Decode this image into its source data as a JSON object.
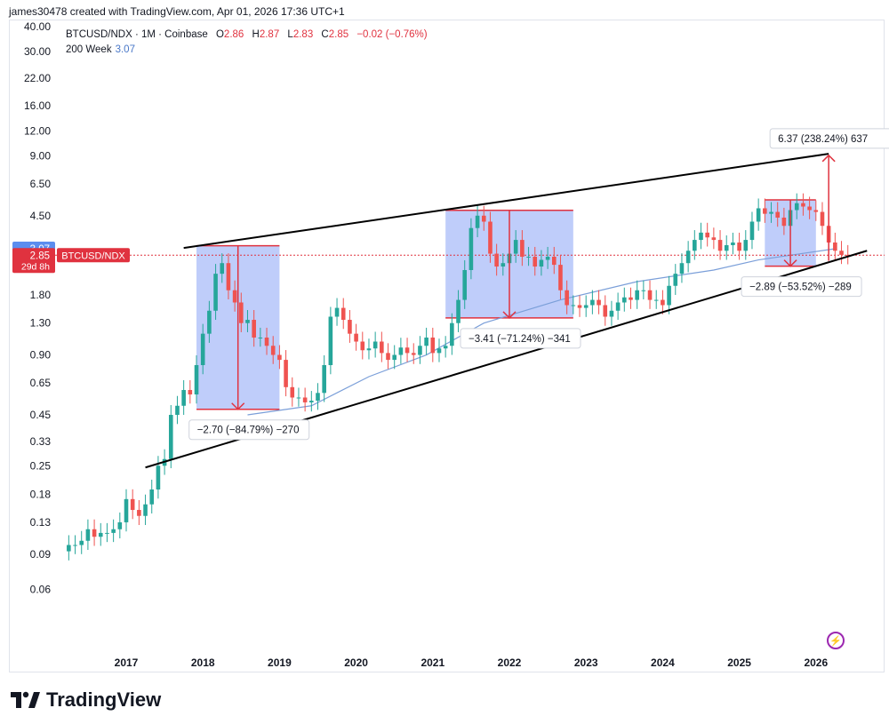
{
  "header": {
    "created_by": "james30478 created with TradingView.com, Apr 01, 2026 17:36 UTC+1"
  },
  "legend": {
    "symbol": "BTCUSD/NDX · 1M · Coinbase",
    "o_label": "O",
    "o_value": "2.86",
    "h_label": "H",
    "h_value": "2.87",
    "l_label": "L",
    "l_value": "2.83",
    "c_label": "C",
    "c_value": "2.85",
    "change": "−0.02 (−0.76%)",
    "ma_label": "200 Week",
    "ma_value": "3.07"
  },
  "price_badges": {
    "ma_value": "3.07",
    "last_value": "2.85",
    "symbol": "BTCUSD/NDX",
    "countdown": "29d 8h"
  },
  "annotations": {
    "drop_2018": "−2.70 (−84.79%) −270",
    "drop_2021": "−3.41 (−71.24%) −341",
    "drop_2025": "−2.89 (−53.52%) −289",
    "rise_target": "6.37 (238.24%) 637"
  },
  "brand": {
    "name": "TradingView"
  },
  "colors": {
    "up": "#26a69a",
    "down": "#ef5350",
    "ma": "#7b9fd9",
    "box_fill": "#7f9cf5",
    "box_border": "#e0323f",
    "trendline": "#000000",
    "last_price_line": "#e0323f"
  },
  "chart_data": {
    "type": "candlestick",
    "title": "BTCUSD/NDX · 1M · Coinbase",
    "scale": "log",
    "y_ticks": [
      "40.00",
      "30.00",
      "22.00",
      "16.00",
      "12.00",
      "9.00",
      "6.50",
      "4.50",
      "3.07",
      "2.85",
      "1.80",
      "1.30",
      "0.90",
      "0.65",
      "0.45",
      "0.33",
      "0.25",
      "0.18",
      "0.13",
      "0.09",
      "0.06"
    ],
    "x_ticks": [
      "2017",
      "2018",
      "2019",
      "2020",
      "2021",
      "2022",
      "2023",
      "2024",
      "2025",
      "2026"
    ],
    "ylim": [
      0.042,
      40
    ],
    "start": "2016-04",
    "closes": [
      0.1,
      0.1,
      0.105,
      0.12,
      0.11,
      0.115,
      0.115,
      0.12,
      0.13,
      0.17,
      0.15,
      0.14,
      0.16,
      0.19,
      0.25,
      0.27,
      0.45,
      0.5,
      0.6,
      0.57,
      0.8,
      1.15,
      1.5,
      2.3,
      2.6,
      1.9,
      1.65,
      1.3,
      1.35,
      1.1,
      1.1,
      1.0,
      0.9,
      0.85,
      0.62,
      0.55,
      0.55,
      0.52,
      0.53,
      0.58,
      0.8,
      1.4,
      1.55,
      1.35,
      1.15,
      1.05,
      0.95,
      0.97,
      1.05,
      0.92,
      0.85,
      0.9,
      0.98,
      0.92,
      0.9,
      1.0,
      1.1,
      0.92,
      0.97,
      1.0,
      1.3,
      1.7,
      2.4,
      3.9,
      4.5,
      4.2,
      2.9,
      2.5,
      2.6,
      2.9,
      3.4,
      2.8,
      2.8,
      2.5,
      2.7,
      2.8,
      2.55,
      1.9,
      1.6,
      1.6,
      1.55,
      1.6,
      1.7,
      1.6,
      1.4,
      1.5,
      1.65,
      1.75,
      1.7,
      1.9,
      1.9,
      1.7,
      1.7,
      1.6,
      2.0,
      2.3,
      2.6,
      3.0,
      3.4,
      3.7,
      3.5,
      3.4,
      3.0,
      3.2,
      3.3,
      3.0,
      3.4,
      4.2,
      4.9,
      4.6,
      4.7,
      4.4,
      4.0,
      4.8,
      5.2,
      5.0,
      4.8,
      4.7,
      4.0,
      3.3,
      3.0,
      2.86,
      2.85
    ],
    "ma_200_week": {
      "x": [
        "2018-08",
        "2019-06",
        "2020-03",
        "2020-12",
        "2021-09",
        "2022-09",
        "2023-09",
        "2024-09",
        "2025-04",
        "2026-04"
      ],
      "values": [
        0.45,
        0.5,
        0.7,
        0.9,
        1.3,
        1.7,
        2.1,
        2.4,
        2.7,
        3.07
      ]
    },
    "measures": [
      {
        "label": "−2.70 (−84.79%) −270",
        "from": 3.18,
        "to": 0.48,
        "start": "2017-12",
        "end": "2019-01"
      },
      {
        "label": "−3.41 (−71.24%) −341",
        "from": 4.79,
        "to": 1.38,
        "start": "2021-03",
        "end": "2022-11"
      },
      {
        "label": "−2.89 (−53.52%) −289",
        "from": 5.4,
        "to": 2.51,
        "start": "2025-05",
        "end": "2026-01"
      },
      {
        "label": "6.37 (238.24%) 637",
        "from": 2.67,
        "to": 9.04,
        "start": "2026-03",
        "end": "2026-03"
      }
    ],
    "trendlines": [
      {
        "x": [
          "2017-10",
          "2026-03"
        ],
        "y": [
          3.1,
          9.2
        ]
      },
      {
        "x": [
          "2017-04",
          "2026-09"
        ],
        "y": [
          0.245,
          3.0
        ]
      }
    ]
  }
}
